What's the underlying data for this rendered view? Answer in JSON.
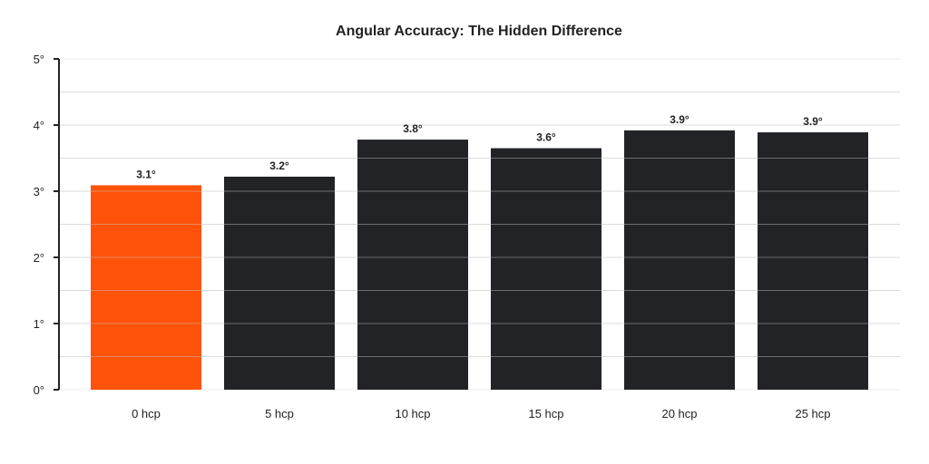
{
  "chart_data": {
    "type": "bar",
    "title": "Angular Accuracy: The Hidden Difference",
    "xlabel": "",
    "ylabel": "",
    "categories": [
      "0 hcp",
      "5 hcp",
      "10 hcp",
      "15 hcp",
      "20 hcp",
      "25 hcp"
    ],
    "values": [
      3.09,
      3.22,
      3.78,
      3.65,
      3.92,
      3.89
    ],
    "data_labels": [
      "3.1°",
      "3.2°",
      "3.8°",
      "3.6°",
      "3.9°",
      "3.9°"
    ],
    "ylim": [
      0,
      5
    ],
    "yticks": [
      0,
      1,
      2,
      3,
      4,
      5
    ],
    "ytick_labels": [
      "0°",
      "1°",
      "2°",
      "3°",
      "4°",
      "5°"
    ],
    "grid": true,
    "colors": [
      "#FF520A",
      "#222327",
      "#222327",
      "#222327",
      "#222327",
      "#222327"
    ]
  }
}
